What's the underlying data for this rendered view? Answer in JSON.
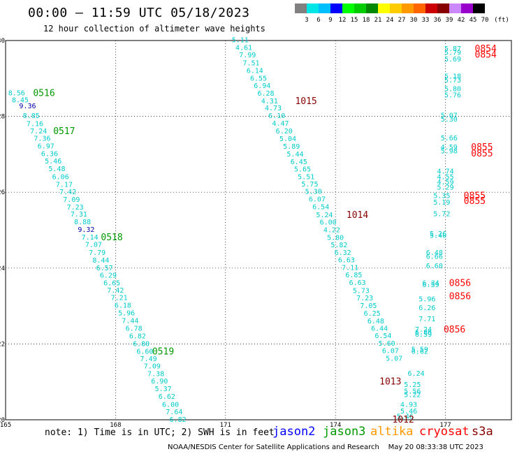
{
  "header": {
    "title": "00:00 – 11:59 UTC 05/18/2023",
    "subtitle": "12 hour collection of altimeter wave heights"
  },
  "colorbar": {
    "unit_label": "(ft)",
    "levels": [
      "3",
      "6",
      "9",
      "12",
      "15",
      "18",
      "21",
      "24",
      "27",
      "30",
      "33",
      "36",
      "39",
      "42",
      "45",
      "70"
    ],
    "colors": [
      "#808080",
      "#00e5e5",
      "#00bfff",
      "#0000ff",
      "#00ff00",
      "#00cc00",
      "#008800",
      "#ffff00",
      "#ffcc00",
      "#ff9900",
      "#ff6600",
      "#cc0000",
      "#880000",
      "#cc88ff",
      "#9900cc",
      "#000000"
    ]
  },
  "footer": {
    "note": "note: 1) Time is in UTC; 2) SWH is in feet",
    "legend": [
      {
        "label": "jason2",
        "color": "#0000ff"
      },
      {
        "label": "jason3",
        "color": "#009900"
      },
      {
        "label": "altika",
        "color": "#ff9900"
      },
      {
        "label": "cryosat",
        "color": "#ff0000"
      },
      {
        "label": "s3a",
        "color": "#880000"
      }
    ],
    "credit": "NOAA/NESDIS Center for Satellite Applications and Research    May 20 08:33:38 UTC 2023"
  },
  "chart_data": {
    "type": "scatter",
    "xlim": [
      165,
      178.8
    ],
    "ylim": [
      20,
      30
    ],
    "x_ticks": [
      "165",
      "168",
      "171",
      "174",
      "177"
    ],
    "y_ticks": [
      "20",
      "22",
      "24",
      "26",
      "28",
      "30"
    ],
    "grid": true,
    "series": [
      {
        "name": "jason3",
        "color": "#00cccc",
        "points": [
          {
            "x": 165.3,
            "y": 28.61,
            "v": "8.56"
          },
          {
            "x": 165.4,
            "y": 28.43,
            "v": "8.45"
          },
          {
            "x": 165.6,
            "y": 28.27,
            "v": "9.36",
            "c": "#0000aa"
          },
          {
            "x": 165.7,
            "y": 28.01,
            "v": "8.85"
          },
          {
            "x": 165.8,
            "y": 27.8,
            "v": "7.16"
          },
          {
            "x": 165.9,
            "y": 27.61,
            "v": "7.24"
          },
          {
            "x": 166.0,
            "y": 27.41,
            "v": "7.36"
          },
          {
            "x": 166.1,
            "y": 27.21,
            "v": "6.97"
          },
          {
            "x": 166.2,
            "y": 27.01,
            "v": "6.36"
          },
          {
            "x": 166.3,
            "y": 26.81,
            "v": "5.46"
          },
          {
            "x": 166.4,
            "y": 26.61,
            "v": "5.48"
          },
          {
            "x": 166.5,
            "y": 26.4,
            "v": "6.06"
          },
          {
            "x": 166.6,
            "y": 26.2,
            "v": "7.17"
          },
          {
            "x": 166.7,
            "y": 26.0,
            "v": "7.42"
          },
          {
            "x": 166.8,
            "y": 25.8,
            "v": "7.09"
          },
          {
            "x": 166.9,
            "y": 25.6,
            "v": "7.23"
          },
          {
            "x": 167.0,
            "y": 25.41,
            "v": "7.31"
          },
          {
            "x": 167.1,
            "y": 25.21,
            "v": "8.88"
          },
          {
            "x": 167.2,
            "y": 25.01,
            "v": "9.32",
            "c": "#0000aa"
          },
          {
            "x": 167.3,
            "y": 24.81,
            "v": "7.14"
          },
          {
            "x": 167.4,
            "y": 24.61,
            "v": "7.07"
          },
          {
            "x": 167.5,
            "y": 24.4,
            "v": "7.79"
          },
          {
            "x": 167.6,
            "y": 24.2,
            "v": "8.44"
          },
          {
            "x": 167.7,
            "y": 24.0,
            "v": "6.57"
          },
          {
            "x": 167.8,
            "y": 23.8,
            "v": "6.29"
          },
          {
            "x": 167.9,
            "y": 23.6,
            "v": "6.65"
          },
          {
            "x": 168.0,
            "y": 23.41,
            "v": "7.42"
          },
          {
            "x": 168.1,
            "y": 23.21,
            "v": "7.21"
          },
          {
            "x": 168.2,
            "y": 23.01,
            "v": "6.18"
          },
          {
            "x": 168.3,
            "y": 22.81,
            "v": "5.96"
          },
          {
            "x": 168.4,
            "y": 22.61,
            "v": "7.44"
          },
          {
            "x": 168.5,
            "y": 22.4,
            "v": "6.78"
          },
          {
            "x": 168.6,
            "y": 22.2,
            "v": "6.82"
          },
          {
            "x": 168.7,
            "y": 22.0,
            "v": "6.80"
          },
          {
            "x": 168.8,
            "y": 21.8,
            "v": "6.60"
          },
          {
            "x": 168.9,
            "y": 21.6,
            "v": "7.49"
          },
          {
            "x": 169.0,
            "y": 21.41,
            "v": "7.09"
          },
          {
            "x": 169.1,
            "y": 21.21,
            "v": "7.38"
          },
          {
            "x": 169.2,
            "y": 21.01,
            "v": "6.90"
          },
          {
            "x": 169.3,
            "y": 20.81,
            "v": "5.37"
          },
          {
            "x": 169.4,
            "y": 20.61,
            "v": "6.62"
          },
          {
            "x": 169.5,
            "y": 20.4,
            "v": "6.00"
          },
          {
            "x": 169.6,
            "y": 20.2,
            "v": "7.64"
          },
          {
            "x": 169.7,
            "y": 20.0,
            "v": "6.82"
          }
        ]
      },
      {
        "name": "s3a",
        "color": "#00cccc",
        "points": [
          {
            "x": 171.4,
            "y": 30.01,
            "v": "5.11"
          },
          {
            "x": 171.5,
            "y": 29.81,
            "v": "4.61"
          },
          {
            "x": 171.6,
            "y": 29.61,
            "v": "7.99"
          },
          {
            "x": 171.7,
            "y": 29.4,
            "v": "7.51"
          },
          {
            "x": 171.8,
            "y": 29.2,
            "v": "6.14"
          },
          {
            "x": 171.9,
            "y": 29.0,
            "v": "6.55"
          },
          {
            "x": 172.0,
            "y": 28.8,
            "v": "6.94"
          },
          {
            "x": 172.1,
            "y": 28.6,
            "v": "6.28"
          },
          {
            "x": 172.2,
            "y": 28.4,
            "v": "4.31"
          },
          {
            "x": 172.3,
            "y": 28.21,
            "v": "4.73"
          },
          {
            "x": 172.4,
            "y": 28.01,
            "v": "6.10"
          },
          {
            "x": 172.5,
            "y": 27.81,
            "v": "4.47"
          },
          {
            "x": 172.6,
            "y": 27.61,
            "v": "6.20"
          },
          {
            "x": 172.7,
            "y": 27.4,
            "v": "5.04"
          },
          {
            "x": 172.8,
            "y": 27.2,
            "v": "5.89"
          },
          {
            "x": 172.9,
            "y": 27.0,
            "v": "5.44"
          },
          {
            "x": 173.0,
            "y": 26.8,
            "v": "6.45"
          },
          {
            "x": 173.1,
            "y": 26.6,
            "v": "5.65"
          },
          {
            "x": 173.2,
            "y": 26.4,
            "v": "5.51"
          },
          {
            "x": 173.3,
            "y": 26.21,
            "v": "5.75"
          },
          {
            "x": 173.4,
            "y": 26.01,
            "v": "5.30"
          },
          {
            "x": 173.5,
            "y": 25.81,
            "v": "6.07"
          },
          {
            "x": 173.6,
            "y": 25.61,
            "v": "6.54"
          },
          {
            "x": 173.7,
            "y": 25.4,
            "v": "5.24"
          },
          {
            "x": 173.8,
            "y": 25.2,
            "v": "6.00"
          },
          {
            "x": 173.9,
            "y": 25.0,
            "v": "4.22"
          },
          {
            "x": 174.0,
            "y": 24.8,
            "v": "5.80"
          },
          {
            "x": 174.1,
            "y": 24.6,
            "v": "5.82"
          },
          {
            "x": 174.2,
            "y": 24.4,
            "v": "6.32"
          },
          {
            "x": 174.3,
            "y": 24.21,
            "v": "6.63"
          },
          {
            "x": 174.4,
            "y": 24.01,
            "v": "7.11"
          },
          {
            "x": 174.5,
            "y": 23.81,
            "v": "6.85"
          },
          {
            "x": 174.6,
            "y": 23.61,
            "v": "6.63"
          },
          {
            "x": 174.7,
            "y": 23.4,
            "v": "5.73"
          },
          {
            "x": 174.8,
            "y": 23.2,
            "v": "7.23"
          },
          {
            "x": 174.9,
            "y": 23.0,
            "v": "7.05"
          },
          {
            "x": 175.0,
            "y": 22.8,
            "v": "6.25"
          },
          {
            "x": 175.1,
            "y": 22.6,
            "v": "6.48"
          },
          {
            "x": 175.2,
            "y": 22.4,
            "v": "6.44"
          },
          {
            "x": 175.3,
            "y": 22.21,
            "v": "6.54"
          },
          {
            "x": 175.4,
            "y": 22.01,
            "v": "5.60"
          },
          {
            "x": 175.5,
            "y": 21.81,
            "v": "6.07"
          },
          {
            "x": 175.6,
            "y": 21.61,
            "v": "5.07"
          }
        ]
      },
      {
        "name": "cryosat",
        "color": "#00cccc",
        "points": [
          {
            "x": 177.2,
            "y": 29.78,
            "v": "5.87"
          },
          {
            "x": 177.2,
            "y": 29.68,
            "v": "5.79"
          },
          {
            "x": 177.2,
            "y": 29.5,
            "v": "5.69"
          },
          {
            "x": 177.2,
            "y": 29.05,
            "v": "5.18"
          },
          {
            "x": 177.2,
            "y": 28.95,
            "v": "5.73"
          },
          {
            "x": 177.2,
            "y": 28.72,
            "v": "5.80"
          },
          {
            "x": 177.2,
            "y": 28.55,
            "v": "5.76"
          },
          {
            "x": 177.1,
            "y": 28.02,
            "v": "5.07"
          },
          {
            "x": 177.1,
            "y": 27.92,
            "v": "5.30"
          },
          {
            "x": 177.1,
            "y": 27.42,
            "v": "5.66"
          },
          {
            "x": 177.1,
            "y": 27.18,
            "v": "4.59"
          },
          {
            "x": 177.1,
            "y": 27.08,
            "v": "5.98"
          },
          {
            "x": 177.0,
            "y": 26.55,
            "v": "4.74"
          },
          {
            "x": 177.0,
            "y": 26.4,
            "v": "4.55"
          },
          {
            "x": 177.0,
            "y": 26.26,
            "v": "4.59"
          },
          {
            "x": 177.0,
            "y": 26.12,
            "v": "5.29"
          },
          {
            "x": 176.9,
            "y": 25.9,
            "v": "5.35"
          },
          {
            "x": 176.9,
            "y": 25.73,
            "v": "5.19"
          },
          {
            "x": 176.9,
            "y": 25.42,
            "v": "5.72"
          },
          {
            "x": 176.8,
            "y": 24.9,
            "v": "5.26"
          },
          {
            "x": 176.8,
            "y": 24.85,
            "v": "5.40"
          },
          {
            "x": 176.7,
            "y": 24.4,
            "v": "6.48"
          },
          {
            "x": 176.7,
            "y": 24.3,
            "v": "6.66"
          },
          {
            "x": 176.7,
            "y": 24.05,
            "v": "6.60"
          },
          {
            "x": 176.6,
            "y": 23.6,
            "v": "6.34"
          },
          {
            "x": 176.6,
            "y": 23.55,
            "v": "6.59"
          },
          {
            "x": 176.5,
            "y": 23.18,
            "v": "5.96"
          },
          {
            "x": 176.5,
            "y": 22.95,
            "v": "6.26"
          },
          {
            "x": 176.5,
            "y": 22.65,
            "v": "7.71"
          },
          {
            "x": 176.4,
            "y": 22.38,
            "v": "7.24"
          },
          {
            "x": 176.4,
            "y": 22.3,
            "v": "6.86"
          },
          {
            "x": 176.4,
            "y": 22.25,
            "v": "6.59"
          },
          {
            "x": 176.3,
            "y": 21.85,
            "v": "5.59"
          },
          {
            "x": 176.3,
            "y": 21.8,
            "v": "6.62"
          },
          {
            "x": 176.2,
            "y": 21.22,
            "v": "6.24"
          },
          {
            "x": 176.1,
            "y": 20.92,
            "v": "5.25"
          },
          {
            "x": 176.1,
            "y": 20.75,
            "v": "5.56"
          },
          {
            "x": 176.1,
            "y": 20.65,
            "v": "5.22"
          },
          {
            "x": 176.0,
            "y": 20.4,
            "v": "4.93"
          },
          {
            "x": 176.0,
            "y": 20.22,
            "v": "5.46"
          },
          {
            "x": 175.9,
            "y": 20.08,
            "v": "5.46"
          }
        ]
      }
    ],
    "time_labels": [
      {
        "x": 165.75,
        "y": 28.61,
        "t": "0516",
        "color": "#009900"
      },
      {
        "x": 166.3,
        "y": 27.61,
        "t": "0517",
        "color": "#009900"
      },
      {
        "x": 167.6,
        "y": 24.81,
        "t": "0518",
        "color": "#009900"
      },
      {
        "x": 169.0,
        "y": 21.8,
        "t": "0519",
        "color": "#009900"
      },
      {
        "x": 172.9,
        "y": 28.4,
        "t": "1015",
        "color": "#880000"
      },
      {
        "x": 174.3,
        "y": 25.4,
        "t": "1014",
        "color": "#880000"
      },
      {
        "x": 175.2,
        "y": 21.0,
        "t": "1013",
        "color": "#880000"
      },
      {
        "x": 175.55,
        "y": 20.0,
        "t": "1012",
        "color": "#880000"
      },
      {
        "x": 177.8,
        "y": 29.78,
        "t": "0854",
        "color": "#ff0000"
      },
      {
        "x": 177.8,
        "y": 29.62,
        "t": "0854",
        "color": "#ff0000"
      },
      {
        "x": 177.7,
        "y": 27.18,
        "t": "0855",
        "color": "#ff0000"
      },
      {
        "x": 177.7,
        "y": 27.02,
        "t": "0855",
        "color": "#ff0000"
      },
      {
        "x": 177.5,
        "y": 25.9,
        "t": "0855",
        "color": "#ff0000"
      },
      {
        "x": 177.5,
        "y": 25.76,
        "t": "0855",
        "color": "#ff0000"
      },
      {
        "x": 177.1,
        "y": 23.6,
        "t": "0856",
        "color": "#ff0000"
      },
      {
        "x": 177.1,
        "y": 23.25,
        "t": "0856",
        "color": "#ff0000"
      },
      {
        "x": 176.95,
        "y": 22.38,
        "t": "0856",
        "color": "#ff0000"
      }
    ]
  }
}
